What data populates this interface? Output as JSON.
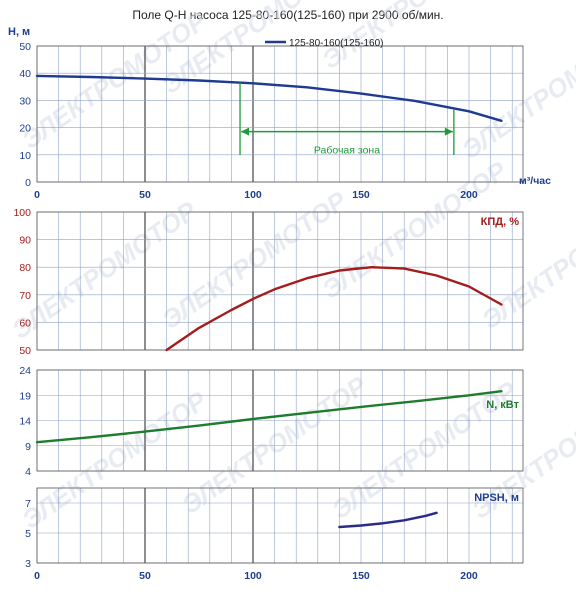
{
  "title": "Поле Q-H насоса 125-80-160(125-160) при 2900 об/мин.",
  "colors": {
    "grid": "#8fa3c4",
    "grid_major": "#333333",
    "axis_text": "#1f3f8f",
    "head_line": "#1f3a93",
    "efficiency_line": "#a51c1c",
    "power_line": "#1e7d2c",
    "npsh_line": "#2a2a8a",
    "zone": "#1e9a3a",
    "watermark": "#d7dee9"
  },
  "watermark_text": "ЭЛЕКТРОМОТОР",
  "chart_data": [
    {
      "type": "line",
      "id": "head",
      "ylabel": "H, м",
      "xlabel": "м³/час",
      "xlim": [
        0,
        225
      ],
      "ylim": [
        0,
        50
      ],
      "x_ticks": [
        "0",
        "50",
        "100",
        "150",
        "200"
      ],
      "y_ticks": [
        "0",
        "10",
        "20",
        "30",
        "40",
        "50"
      ],
      "legend": "top-right",
      "series": [
        {
          "name": "125-80-160(125-160)",
          "x": [
            0,
            25,
            50,
            75,
            100,
            125,
            150,
            175,
            200,
            215
          ],
          "y": [
            39,
            38.6,
            38,
            37.3,
            36.3,
            34.8,
            32.5,
            29.8,
            26,
            22.5
          ]
        }
      ],
      "working_zone": {
        "label": "Рабочая зона",
        "x_start": 94,
        "x_end": 193
      }
    },
    {
      "type": "line",
      "id": "efficiency",
      "ylabel": "КПД, %",
      "xlim": [
        0,
        225
      ],
      "ylim": [
        50,
        100
      ],
      "y_ticks": [
        "50",
        "60",
        "70",
        "80",
        "90",
        "100"
      ],
      "series": [
        {
          "x": [
            60,
            75,
            90,
            100,
            110,
            125,
            140,
            155,
            170,
            185,
            200,
            215
          ],
          "y": [
            50,
            58,
            64.5,
            68.5,
            72,
            76,
            78.8,
            80,
            79.5,
            77,
            73,
            66.5
          ]
        }
      ]
    },
    {
      "type": "line",
      "id": "power",
      "ylabel": "N, кВт",
      "xlim": [
        0,
        225
      ],
      "ylim": [
        4,
        24
      ],
      "y_ticks": [
        "4",
        "9",
        "14",
        "19",
        "24"
      ],
      "series": [
        {
          "x": [
            0,
            25,
            50,
            75,
            100,
            125,
            150,
            175,
            200,
            215
          ],
          "y": [
            9.7,
            10.7,
            11.8,
            13,
            14.3,
            15.5,
            16.7,
            17.8,
            19,
            19.8
          ]
        }
      ]
    },
    {
      "type": "line",
      "id": "npsh",
      "ylabel": "NPSH, м",
      "xlabel": "",
      "xlim": [
        0,
        225
      ],
      "ylim": [
        3,
        8
      ],
      "x_ticks": [
        "0",
        "50",
        "100",
        "150",
        "200"
      ],
      "y_ticks": [
        "3",
        "5",
        "7"
      ],
      "series": [
        {
          "x": [
            140,
            150,
            160,
            170,
            180,
            185
          ],
          "y": [
            5.4,
            5.5,
            5.65,
            5.85,
            6.15,
            6.35
          ]
        }
      ]
    }
  ]
}
